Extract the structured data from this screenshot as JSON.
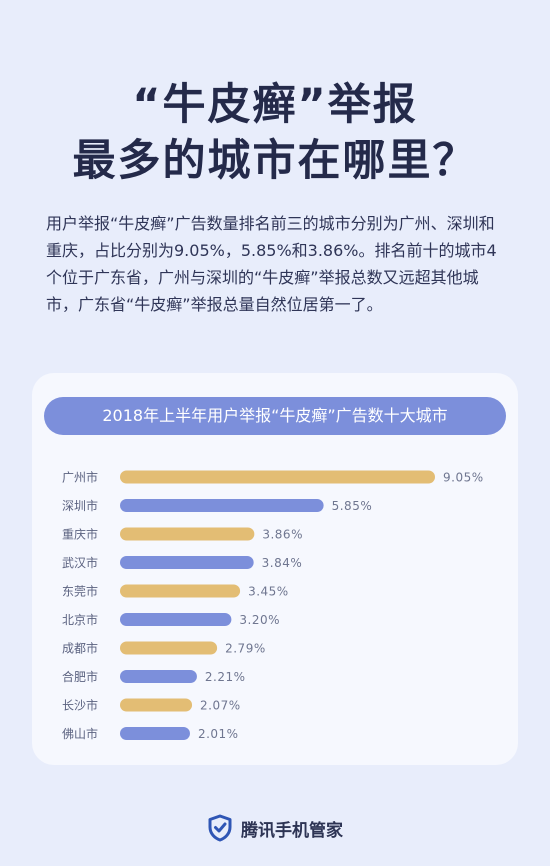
{
  "title_line1": "“牛皮癣”举报",
  "title_line2": "最多的城市在哪里？",
  "intro": "用户举报“牛皮癣”广告数量排名前三的城市分别为广州、深圳和重庆，占比分别为9.05%，5.85%和3.86%。排名前十的城市4个位于广东省，广州与深圳的“牛皮癣”举报总数又远超其他城市，广东省“牛皮癣”举报总量自然位居第一了。",
  "chart_data": {
    "type": "bar",
    "orientation": "horizontal",
    "title": "2018年上半年用户举报“牛皮癣”广告数十大城市",
    "categories": [
      "广州市",
      "深圳市",
      "重庆市",
      "武汉市",
      "东莞市",
      "北京市",
      "成都市",
      "合肥市",
      "长沙市",
      "佛山市"
    ],
    "values": [
      9.05,
      5.85,
      3.86,
      3.84,
      3.45,
      3.2,
      2.79,
      2.21,
      2.07,
      2.01
    ],
    "labels": [
      "9.05%",
      "5.85%",
      "3.86%",
      "3.84%",
      "3.45%",
      "3.20%",
      "2.79%",
      "2.21%",
      "2.07%",
      "2.01%"
    ],
    "unit": "%",
    "bar_colors": [
      "#e3bd74",
      "#7c8fdb"
    ],
    "grid": false
  },
  "footer": {
    "brand": "腾讯手机管家",
    "icon": "shield-check-icon"
  }
}
